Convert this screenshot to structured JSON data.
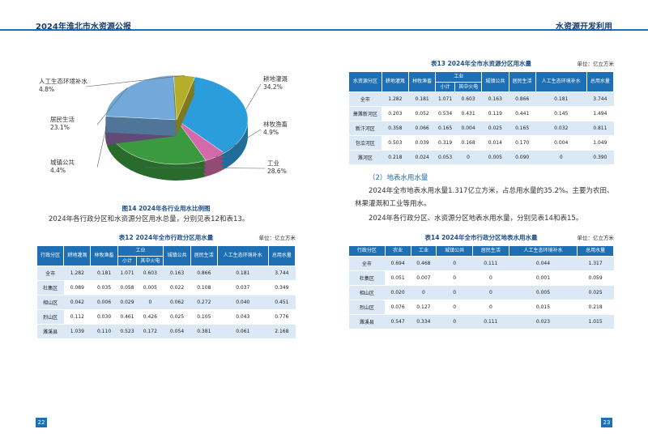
{
  "header": {
    "left_title": "2024年淮北市水资源公报",
    "right_title": "水资源开发利用"
  },
  "chart_data": {
    "type": "pie",
    "categories": [
      "耕地灌溉",
      "林牧渔畜",
      "工业",
      "城镇公共",
      "居民生活",
      "人工生态环境补水"
    ],
    "values": [
      34.2,
      4.9,
      28.6,
      4.4,
      23.1,
      4.8
    ],
    "value_labels": [
      "34.2%",
      "4.9%",
      "28.6%",
      "4.4%",
      "23.1%",
      "4.8%"
    ],
    "colors": [
      "#2b9ddc",
      "#d46aa9",
      "#3b9a40",
      "#8b6ba9",
      "#72a9da",
      "#b5ad2c"
    ],
    "caption": "图14  2024年各行业用水比例图"
  },
  "left_paragraph": "2024年各行政分区和水资源分区用水总量，分别见表12和表13。",
  "table12": {
    "title": "表12  2024年全市行政分区用水量",
    "unit": "单位：亿立方米",
    "headers": [
      {
        "label": "行政分区"
      },
      {
        "label": "耕地灌溉"
      },
      {
        "label": "林牧渔畜"
      },
      {
        "label": "工业",
        "sub": [
          "小计",
          "其中火电"
        ]
      },
      {
        "label": "城镇公共"
      },
      {
        "label": "居民生活"
      },
      {
        "label": "人工生态环境补水"
      },
      {
        "label": "总用水量"
      }
    ],
    "rows": [
      [
        "全市",
        "1.282",
        "0.181",
        "1.071",
        "0.603",
        "0.163",
        "0.866",
        "0.181",
        "3.744"
      ],
      [
        "杜集区",
        "0.089",
        "0.035",
        "0.058",
        "0.005",
        "0.022",
        "0.108",
        "0.037",
        "0.349"
      ],
      [
        "相山区",
        "0.042",
        "0.006",
        "0.029",
        "0",
        "0.062",
        "0.272",
        "0.040",
        "0.451"
      ],
      [
        "烈山区",
        "0.112",
        "0.030",
        "0.461",
        "0.426",
        "0.025",
        "0.105",
        "0.043",
        "0.776"
      ],
      [
        "濉溪县",
        "1.039",
        "0.110",
        "0.523",
        "0.172",
        "0.054",
        "0.381",
        "0.061",
        "2.168"
      ]
    ]
  },
  "table13": {
    "title": "表13  2024年全市水资源分区用水量",
    "unit": "单位：亿立方米",
    "headers": [
      {
        "label": "水资源分区"
      },
      {
        "label": "耕地灌溉"
      },
      {
        "label": "林牧渔畜"
      },
      {
        "label": "工业",
        "sub": [
          "小计",
          "其中火电"
        ]
      },
      {
        "label": "城镇公共"
      },
      {
        "label": "居民生活"
      },
      {
        "label": "人工生态环境补水"
      },
      {
        "label": "总用水量"
      }
    ],
    "rows": [
      [
        "全市",
        "1.282",
        "0.181",
        "1.071",
        "0.603",
        "0.163",
        "0.866",
        "0.181",
        "3.744"
      ],
      [
        "萧濉新河区",
        "0.203",
        "0.052",
        "0.534",
        "0.431",
        "0.119",
        "0.441",
        "0.145",
        "1.494"
      ],
      [
        "新汴河区",
        "0.358",
        "0.066",
        "0.165",
        "0.004",
        "0.025",
        "0.165",
        "0.032",
        "0.811"
      ],
      [
        "包浍河区",
        "0.503",
        "0.039",
        "0.319",
        "0.168",
        "0.014",
        "0.170",
        "0.004",
        "1.049"
      ],
      [
        "濉河区",
        "0.218",
        "0.024",
        "0.053",
        "0",
        "0.005",
        "0.090",
        "0",
        "0.390"
      ]
    ]
  },
  "section_title": "（2）地表水用水量",
  "right_paragraphs": [
    "2024年全市地表水用水量1.317亿立方米，占总用水量的35.2%。主要为农田、林果灌溉和工业等用水。",
    "2024年各行政分区、水资源分区地表水用水量，分别见表14和表15。"
  ],
  "table14": {
    "title": "表14  2024年全市行政分区地表水用水量",
    "unit": "单位：亿立方米",
    "headers": [
      {
        "label": "行政分区"
      },
      {
        "label": "农业"
      },
      {
        "label": "工业"
      },
      {
        "label": "城镇公共"
      },
      {
        "label": "居民生活"
      },
      {
        "label": "人工生态环境补水"
      },
      {
        "label": "总用水量"
      }
    ],
    "rows": [
      [
        "全市",
        "0.694",
        "0.468",
        "0",
        "0.111",
        "0.044",
        "1.317"
      ],
      [
        "杜集区",
        "0.051",
        "0.007",
        "0",
        "0",
        "0.001",
        "0.059"
      ],
      [
        "相山区",
        "0.020",
        "0",
        "0",
        "0",
        "0.005",
        "0.025"
      ],
      [
        "烈山区",
        "0.076",
        "0.127",
        "0",
        "0",
        "0.015",
        "0.218"
      ],
      [
        "濉溪县",
        "0.547",
        "0.334",
        "0",
        "0.111",
        "0.023",
        "1.015"
      ]
    ]
  },
  "page_numbers": [
    "22",
    "23"
  ]
}
